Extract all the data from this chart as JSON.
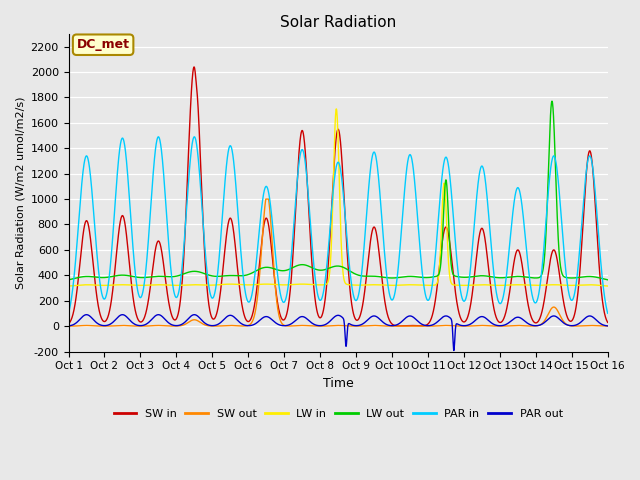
{
  "title": "Solar Radiation",
  "xlabel": "Time",
  "ylabel": "Solar Radiation (W/m2 umol/m2/s)",
  "ylim": [
    -200,
    2300
  ],
  "yticks": [
    -200,
    0,
    200,
    400,
    600,
    800,
    1000,
    1200,
    1400,
    1600,
    1800,
    2000,
    2200
  ],
  "background_color": "#e8e8e8",
  "plot_bg_color": "#e8e8e8",
  "annotation_text": "DC_met",
  "annotation_color": "#8B0000",
  "annotation_bg": "#ffffcc",
  "x_labels": [
    "Oct 1",
    "Oct 2",
    "Oct 3",
    "Oct 4",
    "Oct 5",
    "Oct 6",
    "Oct 7",
    "Oct 8",
    "Oct 9",
    "Oct 10",
    "Oct 11",
    "Oct 12",
    "Oct 13",
    "Oct 14",
    "Oct 15",
    "Oct 16"
  ],
  "series": {
    "SW_in": {
      "color": "#cc0000",
      "label": "SW in",
      "lw": 1.0
    },
    "SW_out": {
      "color": "#ff8800",
      "label": "SW out",
      "lw": 1.0
    },
    "LW_in": {
      "color": "#ffee00",
      "label": "LW in",
      "lw": 1.0
    },
    "LW_out": {
      "color": "#00cc00",
      "label": "LW out",
      "lw": 1.0
    },
    "PAR_in": {
      "color": "#00ccff",
      "label": "PAR in",
      "lw": 1.0
    },
    "PAR_out": {
      "color": "#0000cc",
      "label": "PAR out",
      "lw": 1.0
    }
  }
}
